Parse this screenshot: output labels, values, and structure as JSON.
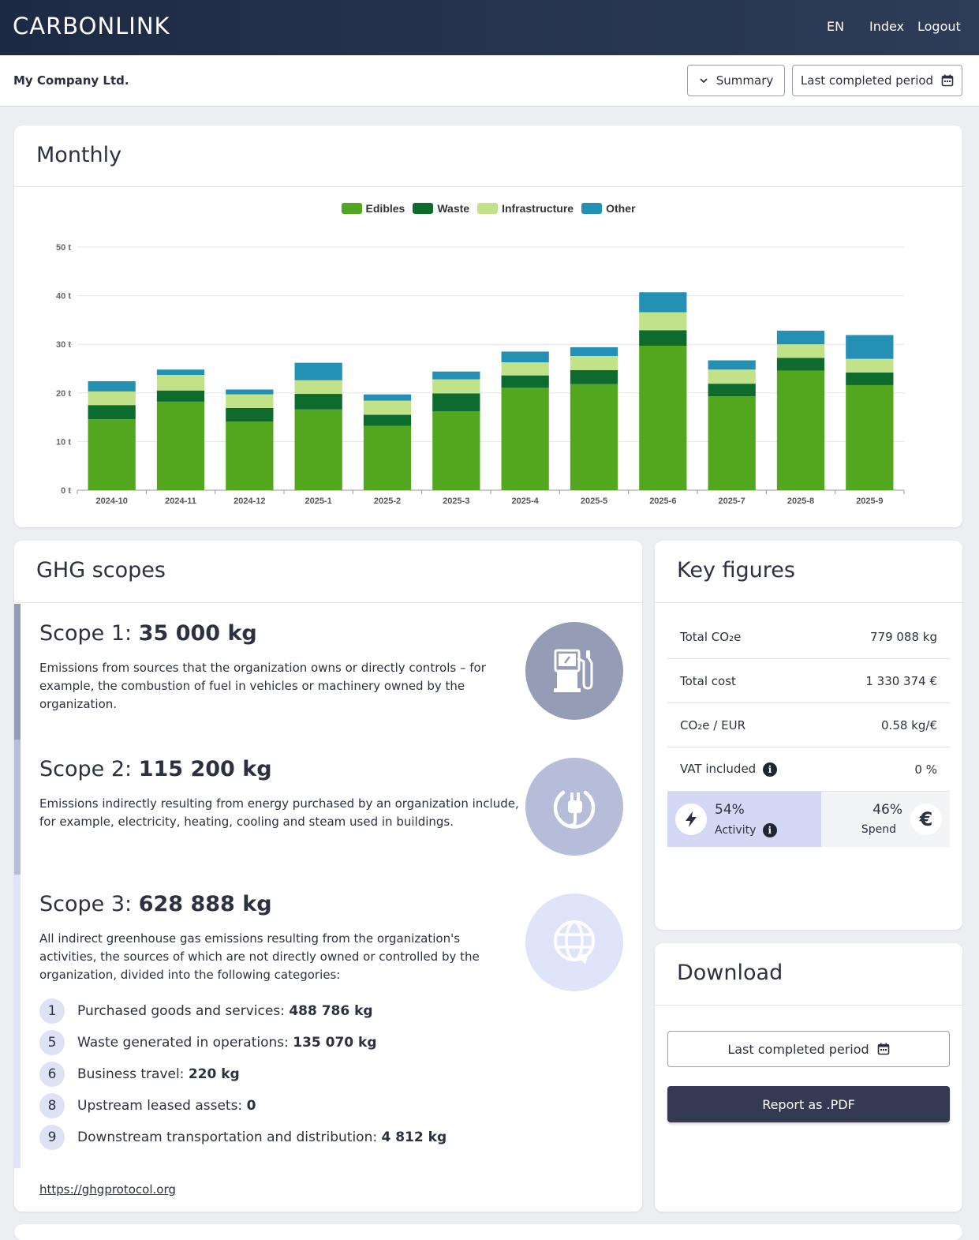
{
  "header": {
    "brand": "CARBONLINK",
    "nav": {
      "lang": "EN",
      "index": "Index",
      "logout": "Logout"
    }
  },
  "subbar": {
    "company": "My Company Ltd.",
    "view_select": "Summary",
    "period_button": "Last completed period"
  },
  "monthly": {
    "title": "Monthly"
  },
  "chart_data": {
    "type": "bar",
    "stacked": true,
    "categories": [
      "2024-10",
      "2024-11",
      "2024-12",
      "2025-1",
      "2025-2",
      "2025-3",
      "2025-4",
      "2025-5",
      "2025-6",
      "2025-7",
      "2025-8",
      "2025-9"
    ],
    "series": [
      {
        "name": "Edibles",
        "color": "#52a71e",
        "values": [
          14.6,
          18.2,
          14.1,
          16.6,
          13.2,
          16.2,
          21.1,
          21.8,
          29.7,
          19.3,
          24.6,
          21.6
        ]
      },
      {
        "name": "Waste",
        "color": "#0e6b2e",
        "values": [
          2.9,
          2.3,
          2.8,
          3.2,
          2.3,
          3.7,
          2.5,
          2.9,
          3.2,
          2.6,
          2.6,
          2.6
        ]
      },
      {
        "name": "Infrastructure",
        "color": "#c2e28a",
        "values": [
          2.8,
          3.2,
          2.8,
          2.8,
          2.9,
          2.9,
          2.7,
          2.9,
          3.7,
          2.9,
          2.8,
          2.8
        ]
      },
      {
        "name": "Other",
        "color": "#2490b4",
        "values": [
          2.1,
          1.1,
          1.0,
          3.6,
          1.3,
          1.6,
          2.2,
          1.8,
          4.1,
          1.9,
          2.8,
          4.9
        ]
      }
    ],
    "y_ticks": [
      "0 t",
      "10 t",
      "20 t",
      "30 t",
      "40 t",
      "50 t"
    ],
    "ylim": [
      0,
      50
    ],
    "ylabel": "",
    "xlabel": "",
    "grid": true,
    "legend_position": "top-center"
  },
  "ghg": {
    "title": "GHG scopes",
    "scopes": [
      {
        "label": "Scope 1:",
        "value": "35 000 kg",
        "desc": "Emissions from sources that the organization owns or directly controls – for example, the combustion of fuel in vehicles or machinery owned by the organization.",
        "icon": "fuel-pump-icon",
        "color": "#959cb6"
      },
      {
        "label": "Scope 2:",
        "value": "115 200 kg",
        "desc": "Emissions indirectly resulting from energy purchased by an organization include, for example, electricity, heating, cooling and steam used in buildings.",
        "icon": "power-plug-icon",
        "color": "#b6bdd9"
      },
      {
        "label": "Scope 3:",
        "value": "628 888 kg",
        "desc": "All indirect greenhouse gas emissions resulting from the organization's activities, the sources of which are not directly owned or controlled by the organization, divided into the following categories:",
        "icon": "globe-icon",
        "color": "#dfe4f8"
      }
    ],
    "categories": [
      {
        "num": "1",
        "label": "Purchased goods and services:",
        "value": "488 786 kg"
      },
      {
        "num": "5",
        "label": "Waste generated in operations:",
        "value": "135 070 kg"
      },
      {
        "num": "6",
        "label": "Business travel:",
        "value": "220 kg"
      },
      {
        "num": "8",
        "label": "Upstream leased assets:",
        "value": "0"
      },
      {
        "num": "9",
        "label": "Downstream transportation and distribution:",
        "value": "4 812 kg"
      }
    ],
    "link": "https://ghgprotocol.org"
  },
  "key_figures": {
    "title": "Key figures",
    "rows": [
      {
        "label": "Total CO₂e",
        "value": "779 088 kg"
      },
      {
        "label": "Total cost",
        "value": "1 330 374 €"
      },
      {
        "label": "CO₂e / EUR",
        "value": "0.58 kg/€"
      },
      {
        "label": "VAT included",
        "value": "0 %"
      }
    ],
    "split": {
      "activity_pct": "54%",
      "activity_label": "Activity",
      "spend_pct": "46%",
      "spend_label": "Spend",
      "activity_fraction": 0.54
    }
  },
  "download": {
    "title": "Download",
    "period_button": "Last completed period",
    "pdf_button": "Report as .PDF"
  },
  "colors": {
    "header_bg": "#1e2a44",
    "primary_dark": "#343a52",
    "activity_bg": "#d3d9f5"
  }
}
